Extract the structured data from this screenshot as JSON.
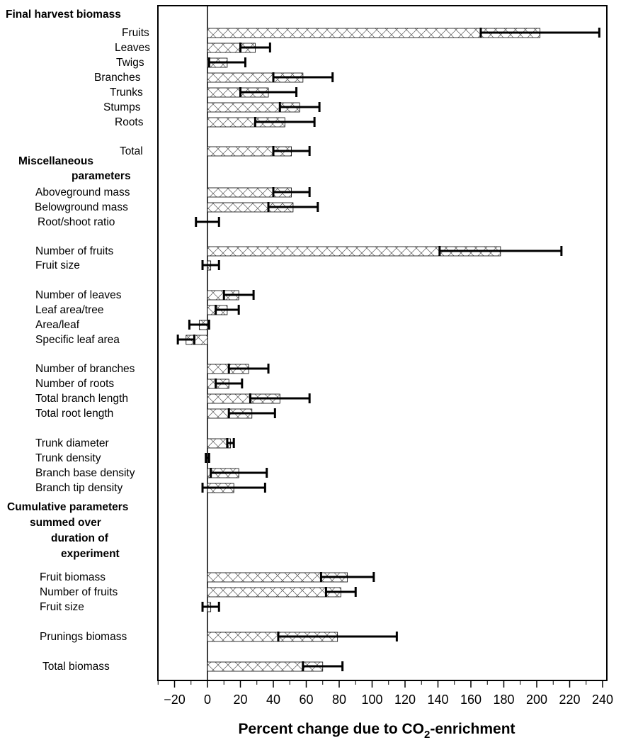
{
  "chart_data": {
    "type": "bar",
    "orientation": "horizontal",
    "xlabel": "Percent change due to CO",
    "xlabel_subscript": "2",
    "xlabel_suffix": "-enrichment",
    "xlim": [
      -30,
      240
    ],
    "xticks": [
      -20,
      0,
      20,
      40,
      60,
      80,
      100,
      120,
      140,
      160,
      180,
      200,
      220,
      240
    ],
    "grid": false,
    "groups": [
      {
        "label": "Final harvest biomass",
        "items": [
          {
            "label": "Fruits",
            "value": 202,
            "error": 36
          },
          {
            "label": "Leaves",
            "value": 29,
            "error": 9
          },
          {
            "label": "Twigs",
            "value": 12,
            "error": 11
          },
          {
            "label": "Branches",
            "value": 58,
            "error": 18
          },
          {
            "label": "Trunks",
            "value": 37,
            "error": 17
          },
          {
            "label": "Stumps",
            "value": 56,
            "error": 12
          },
          {
            "label": "Roots",
            "value": 47,
            "error": 18
          },
          {
            "label": "Total",
            "value": 51,
            "error": 11
          }
        ]
      },
      {
        "label": "Miscellaneous parameters",
        "items": [
          {
            "label": "Aboveground mass",
            "value": 51,
            "error": 11
          },
          {
            "label": "Belowground mass",
            "value": 52,
            "error": 15
          },
          {
            "label": "Root/shoot ratio",
            "value": 0,
            "error": 7
          },
          {
            "label": "Number of fruits",
            "value": 178,
            "error": 37
          },
          {
            "label": "Fruit size",
            "value": 2,
            "error": 5
          },
          {
            "label": "Number of leaves",
            "value": 19,
            "error": 9
          },
          {
            "label": "Leaf area/tree",
            "value": 12,
            "error": 7
          },
          {
            "label": "Area/leaf",
            "value": -5,
            "error": 6
          },
          {
            "label": "Specific leaf area",
            "value": -13,
            "error": 5
          },
          {
            "label": "Number of branches",
            "value": 25,
            "error": 12
          },
          {
            "label": "Number of roots",
            "value": 13,
            "error": 8
          },
          {
            "label": "Total branch length",
            "value": 44,
            "error": 18
          },
          {
            "label": "Total root length",
            "value": 27,
            "error": 14
          },
          {
            "label": "Trunk diameter",
            "value": 14,
            "error": 2
          },
          {
            "label": "Trunk density",
            "value": 0,
            "error": 1
          },
          {
            "label": "Branch base density",
            "value": 19,
            "error": 17
          },
          {
            "label": "Branch tip density",
            "value": 16,
            "error": 19
          }
        ]
      },
      {
        "label": "Cumulative parameters summed over duration of experiment",
        "items": [
          {
            "label": "Fruit biomass",
            "value": 85,
            "error": 16
          },
          {
            "label": "Number of fruits",
            "value": 81,
            "error": 9
          },
          {
            "label": "Fruit size",
            "value": 2,
            "error": 5
          },
          {
            "label": "Prunings biomass",
            "value": 79,
            "error": 36
          },
          {
            "label": "Total biomass",
            "value": 70,
            "error": 12
          }
        ]
      }
    ]
  },
  "headers": {
    "final": "Final harvest biomass",
    "misc_line1": "Miscellaneous",
    "misc_line2": "parameters",
    "cum_line1": "Cumulative parameters",
    "cum_line2": "summed over",
    "cum_line3": "duration of",
    "cum_line4": "experiment"
  }
}
